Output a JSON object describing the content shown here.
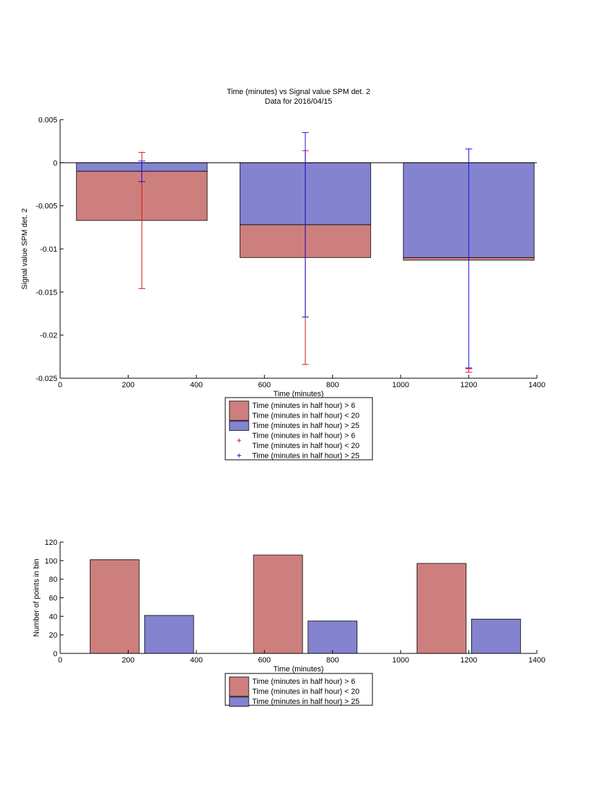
{
  "figure": {
    "title": "Time (minutes) vs Signal value SPM det. 2",
    "subtitle": "Data for 2016/04/15"
  },
  "colors": {
    "red_bar": "#cd7f7d",
    "blue_bar": "#8383cf",
    "red_err": "#e01010",
    "blue_err": "#1010e0",
    "axis": "#000000"
  },
  "chart_data": [
    {
      "type": "bar",
      "stacked": true,
      "xlabel": "Time (minutes)",
      "ylabel": "Signal value SPM det. 2",
      "xlim": [
        0,
        1400
      ],
      "ylim": [
        -0.025,
        0.005
      ],
      "xticks": [
        0,
        200,
        400,
        600,
        800,
        1000,
        1200,
        1400
      ],
      "yticks": [
        0.005,
        0,
        -0.005,
        -0.01,
        -0.015,
        -0.02,
        -0.025
      ],
      "ytick_labels": [
        "0.005",
        "0",
        "-0.005",
        "-0.01",
        "-0.015",
        "-0.02",
        "-0.025"
      ],
      "x": [
        240,
        720,
        1200
      ],
      "bar_width": 384,
      "series": [
        {
          "name": "Time (minutes in half hour) > 6\nTime (minutes in half hour) < 20",
          "color_key": "red_bar",
          "values": [
            -0.0057,
            -0.0038,
            -0.0003
          ]
        },
        {
          "name": "Time (minutes in half hour) > 25",
          "color_key": "blue_bar",
          "values": [
            -0.001,
            -0.0072,
            -0.011
          ]
        }
      ],
      "errorbars": [
        {
          "name": "Time (minutes in half hour) > 6\nTime (minutes in half hour) < 20",
          "color_key": "red_err",
          "x": [
            240,
            720,
            1200
          ],
          "low": [
            -0.0146,
            -0.0234,
            -0.0243
          ],
          "high": [
            0.0012,
            0.0014,
            -0.0239
          ]
        },
        {
          "name": "Time (minutes in half hour) > 25",
          "color_key": "blue_err",
          "x": [
            240,
            720,
            1200
          ],
          "low": [
            -0.0022,
            -0.0179,
            -0.0238
          ],
          "high": [
            0.0002,
            0.0035,
            0.0016
          ]
        }
      ],
      "legend": [
        {
          "kind": "patch",
          "color_key": "red_bar",
          "lines": [
            "Time (minutes in half hour) > 6",
            "Time (minutes in half hour) < 20"
          ]
        },
        {
          "kind": "patch",
          "color_key": "blue_bar",
          "lines": [
            "Time (minutes in half hour) > 25"
          ]
        },
        {
          "kind": "marker",
          "color_key": "red_err",
          "lines": [
            "Time (minutes in half hour) > 6",
            "Time (minutes in half hour) < 20"
          ]
        },
        {
          "kind": "marker",
          "color_key": "blue_err",
          "lines": [
            "Time (minutes in half hour) > 25"
          ]
        }
      ],
      "legend_position": "below"
    },
    {
      "type": "bar",
      "grouped": true,
      "xlabel": "Time (minutes)",
      "ylabel": "Number of points in bin",
      "xlim": [
        0,
        1400
      ],
      "ylim": [
        0,
        120
      ],
      "xticks": [
        0,
        200,
        400,
        600,
        800,
        1000,
        1200,
        1400
      ],
      "yticks": [
        0,
        20,
        40,
        60,
        80,
        100,
        120
      ],
      "ytick_labels": [
        "0",
        "20",
        "40",
        "60",
        "80",
        "100",
        "120"
      ],
      "x": [
        240,
        720,
        1200
      ],
      "bar_width": 144,
      "bar_offsets": [
        -80,
        80
      ],
      "series": [
        {
          "name": "Time (minutes in half hour) > 6\nTime (minutes in half hour) < 20",
          "color_key": "red_bar",
          "values": [
            101,
            106,
            97
          ]
        },
        {
          "name": "Time (minutes in half hour) > 25",
          "color_key": "blue_bar",
          "values": [
            41,
            35,
            37
          ]
        }
      ],
      "legend": [
        {
          "kind": "patch",
          "color_key": "red_bar",
          "lines": [
            "Time (minutes in half hour) > 6",
            "Time (minutes in half hour) < 20"
          ]
        },
        {
          "kind": "patch",
          "color_key": "blue_bar",
          "lines": [
            "Time (minutes in half hour) > 25"
          ]
        }
      ],
      "legend_position": "below"
    }
  ]
}
